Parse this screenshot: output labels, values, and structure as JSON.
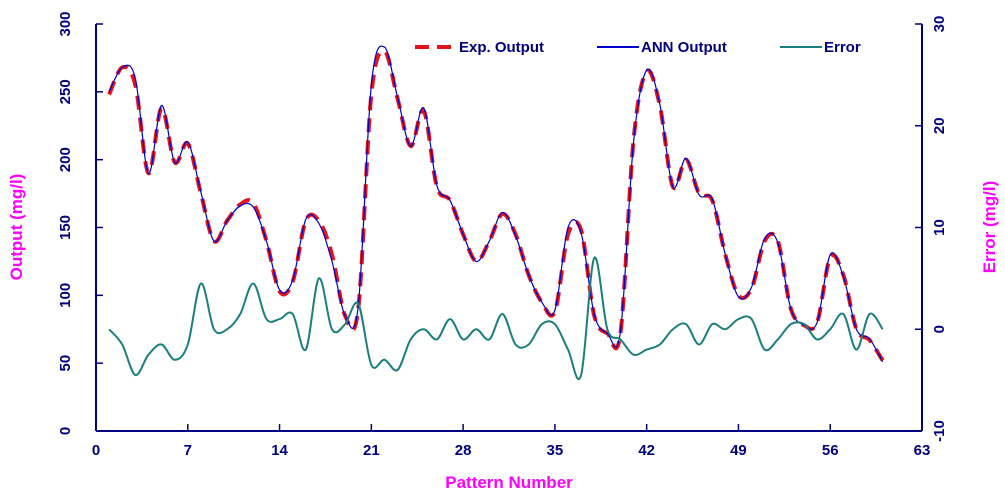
{
  "chart_data": {
    "type": "line",
    "xlabel": "Pattern Number",
    "ylabel": "Output (mg/l)",
    "y2label": "Error (mg/l)",
    "x": [
      1,
      2,
      3,
      4,
      5,
      6,
      7,
      8,
      9,
      10,
      11,
      12,
      13,
      14,
      15,
      16,
      17,
      18,
      19,
      20,
      21,
      22,
      23,
      24,
      25,
      26,
      27,
      28,
      29,
      30,
      31,
      32,
      33,
      34,
      35,
      36,
      37,
      38,
      39,
      40,
      41,
      42,
      43,
      44,
      45,
      46,
      47,
      48,
      49,
      50,
      51,
      52,
      53,
      54,
      55,
      56,
      57,
      58,
      59,
      60
    ],
    "series": [
      {
        "name": "Exp. Output",
        "color": "#e8101a",
        "dashed": true,
        "values": [
          248,
          268,
          255,
          190,
          238,
          198,
          212,
          175,
          140,
          155,
          167,
          168,
          140,
          103,
          110,
          155,
          155,
          130,
          85,
          90,
          248,
          280,
          245,
          210,
          236,
          180,
          170,
          145,
          125,
          140,
          160,
          145,
          115,
          95,
          88,
          145,
          148,
          85,
          72,
          72,
          215,
          265,
          240,
          180,
          200,
          175,
          170,
          130,
          100,
          105,
          140,
          140,
          90,
          78,
          80,
          128,
          115,
          75,
          67,
          52
        ]
      },
      {
        "name": "ANN Output",
        "color": "#0000cc",
        "dashed": false,
        "values": [
          250,
          268,
          260,
          190,
          240,
          198,
          213,
          176,
          140,
          155,
          166,
          165,
          140,
          104,
          111,
          156,
          153,
          125,
          85,
          92,
          255,
          283,
          246,
          210,
          238,
          181,
          170,
          145,
          125,
          140,
          161,
          144,
          115,
          95,
          89,
          150,
          146,
          86,
          72,
          73,
          213,
          266,
          241,
          180,
          201,
          174,
          171,
          130,
          99,
          106,
          142,
          139,
          90,
          78,
          80,
          130,
          114,
          75,
          68,
          51
        ]
      },
      {
        "name": "Error",
        "color": "#1b7f7f",
        "dashed": false,
        "axis": "y2",
        "values": [
          0,
          -1.5,
          -4.5,
          -2.5,
          -1.5,
          -3,
          -1.5,
          4.5,
          0,
          0,
          1.5,
          4.5,
          1,
          1,
          1.5,
          -2,
          5,
          0,
          0.5,
          2.5,
          -3.5,
          -3,
          -4,
          -1,
          0,
          -1,
          1,
          -1,
          0,
          -1,
          1.5,
          -1.5,
          -1.5,
          0.5,
          0.5,
          -2,
          -4.5,
          7,
          0,
          -1,
          -2.5,
          -2,
          -1.5,
          0,
          0.5,
          -1.5,
          0.5,
          0,
          1,
          1,
          -2,
          -1,
          0.5,
          0.5,
          -1,
          0,
          1.5,
          -2,
          1.5,
          0
        ]
      }
    ],
    "xlim": [
      0,
      63
    ],
    "xticks": [
      0,
      7,
      14,
      21,
      28,
      35,
      42,
      49,
      56,
      63
    ],
    "ylim": [
      0,
      300
    ],
    "yticks": [
      0,
      50,
      100,
      150,
      200,
      250,
      300
    ],
    "y2lim": [
      -10,
      30
    ],
    "y2ticks": [
      -10,
      0,
      10,
      20,
      30
    ],
    "legend": "top"
  }
}
